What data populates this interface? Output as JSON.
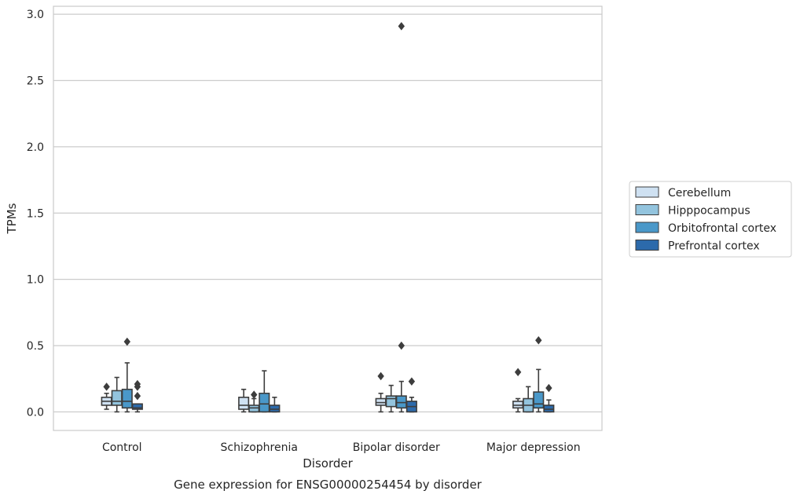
{
  "chart_data": {
    "type": "box",
    "title": "",
    "caption": "Gene expression for ENSG00000254454 by disorder",
    "xlabel": "Disorder",
    "ylabel": "TPMs",
    "ylim": [
      -0.14,
      3.06
    ],
    "yticks": [
      "0.0",
      "0.5",
      "1.0",
      "1.5",
      "2.0",
      "2.5",
      "3.0"
    ],
    "grid": "horizontal",
    "legend": "right",
    "categories": [
      "Control",
      "Schizophrenia",
      "Bipolar disorder",
      "Major depression"
    ],
    "series": [
      {
        "name": "Cerebellum",
        "color": "#cfe1f2",
        "boxes": [
          {
            "whislo": 0.02,
            "q1": 0.05,
            "med": 0.08,
            "q3": 0.11,
            "whishi": 0.14,
            "fliers": [
              0.19
            ]
          },
          {
            "whislo": 0.0,
            "q1": 0.02,
            "med": 0.05,
            "q3": 0.11,
            "whishi": 0.17,
            "fliers": []
          },
          {
            "whislo": 0.0,
            "q1": 0.05,
            "med": 0.07,
            "q3": 0.1,
            "whishi": 0.14,
            "fliers": [
              0.27
            ]
          },
          {
            "whislo": 0.0,
            "q1": 0.03,
            "med": 0.05,
            "q3": 0.08,
            "whishi": 0.1,
            "fliers": [
              0.3
            ]
          }
        ]
      },
      {
        "name": "Hipppocampus",
        "color": "#93c4de",
        "boxes": [
          {
            "whislo": 0.0,
            "q1": 0.05,
            "med": 0.08,
            "q3": 0.16,
            "whishi": 0.26,
            "fliers": []
          },
          {
            "whislo": 0.0,
            "q1": 0.0,
            "med": 0.03,
            "q3": 0.05,
            "whishi": 0.1,
            "fliers": [
              0.13
            ]
          },
          {
            "whislo": 0.0,
            "q1": 0.04,
            "med": 0.1,
            "q3": 0.12,
            "whishi": 0.2,
            "fliers": []
          },
          {
            "whislo": 0.0,
            "q1": 0.0,
            "med": 0.05,
            "q3": 0.1,
            "whishi": 0.19,
            "fliers": []
          }
        ]
      },
      {
        "name": "Orbitofrontal cortex",
        "color": "#4a98c9",
        "boxes": [
          {
            "whislo": 0.0,
            "q1": 0.03,
            "med": 0.08,
            "q3": 0.17,
            "whishi": 0.37,
            "fliers": [
              0.53
            ]
          },
          {
            "whislo": 0.0,
            "q1": 0.0,
            "med": 0.06,
            "q3": 0.14,
            "whishi": 0.31,
            "fliers": []
          },
          {
            "whislo": 0.0,
            "q1": 0.03,
            "med": 0.07,
            "q3": 0.12,
            "whishi": 0.23,
            "fliers": [
              0.5,
              2.91
            ]
          },
          {
            "whislo": 0.0,
            "q1": 0.03,
            "med": 0.06,
            "q3": 0.15,
            "whishi": 0.32,
            "fliers": [
              0.54
            ]
          }
        ]
      },
      {
        "name": "Prefrontal cortex",
        "color": "#2c6aab",
        "boxes": [
          {
            "whislo": 0.0,
            "q1": 0.02,
            "med": 0.03,
            "q3": 0.06,
            "whishi": 0.06,
            "fliers": [
              0.12,
              0.19,
              0.21
            ]
          },
          {
            "whislo": 0.0,
            "q1": 0.0,
            "med": 0.02,
            "q3": 0.05,
            "whishi": 0.11,
            "fliers": []
          },
          {
            "whislo": 0.0,
            "q1": 0.0,
            "med": 0.04,
            "q3": 0.08,
            "whishi": 0.11,
            "fliers": [
              0.23
            ]
          },
          {
            "whislo": 0.0,
            "q1": 0.0,
            "med": 0.02,
            "q3": 0.05,
            "whishi": 0.09,
            "fliers": [
              0.18
            ]
          }
        ]
      }
    ]
  }
}
